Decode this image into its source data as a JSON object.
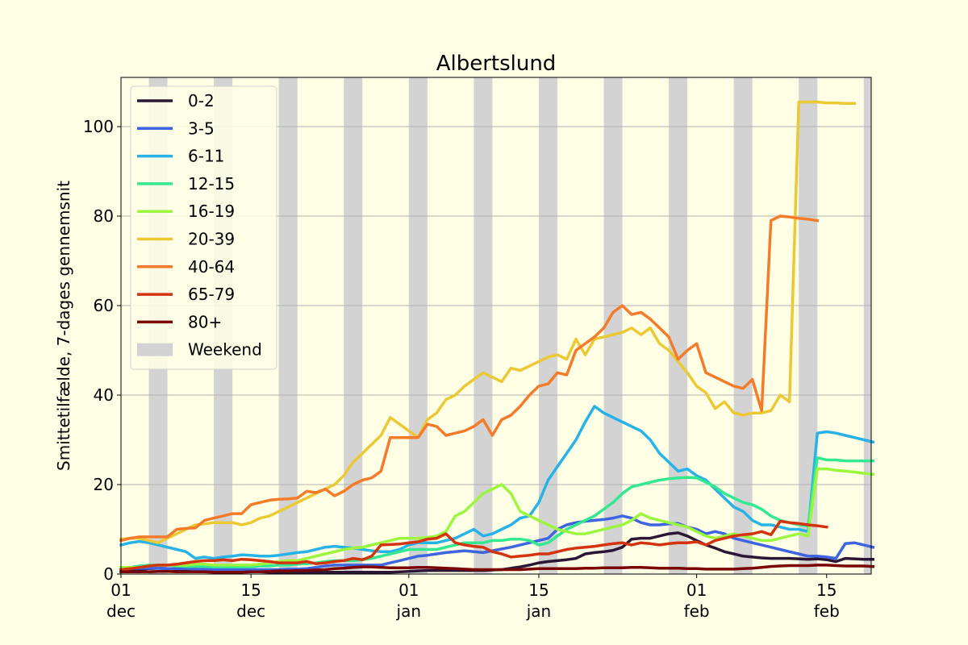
{
  "chart_data": {
    "type": "line",
    "title": "Albertslund",
    "xlabel": "",
    "ylabel": "Smittetilfælde, 7-dages gennemsnit",
    "ylim": [
      0,
      111
    ],
    "yticks": [
      0,
      20,
      40,
      60,
      80,
      100
    ],
    "xlim": [
      "2021-12-01",
      "2022-02-19"
    ],
    "xticks": [
      {
        "date": "2021-12-01",
        "line1": "01",
        "line2": "dec"
      },
      {
        "date": "2021-12-15",
        "line1": "15",
        "line2": "dec"
      },
      {
        "date": "2022-01-01",
        "line1": "01",
        "line2": "jan"
      },
      {
        "date": "2022-01-15",
        "line1": "15",
        "line2": "jan"
      },
      {
        "date": "2022-02-01",
        "line1": "01",
        "line2": "feb"
      },
      {
        "date": "2022-02-15",
        "line1": "15",
        "line2": "feb"
      }
    ],
    "grid": "horizontal",
    "legend_position": "top-left",
    "weekend_label": "Weekend",
    "weekend_color": "#d3d3d3",
    "weekends": [
      [
        "2021-12-04",
        "2021-12-05"
      ],
      [
        "2021-12-11",
        "2021-12-12"
      ],
      [
        "2021-12-18",
        "2021-12-19"
      ],
      [
        "2021-12-25",
        "2021-12-26"
      ],
      [
        "2022-01-01",
        "2022-01-02"
      ],
      [
        "2022-01-08",
        "2022-01-09"
      ],
      [
        "2022-01-15",
        "2022-01-16"
      ],
      [
        "2022-01-22",
        "2022-01-23"
      ],
      [
        "2022-01-29",
        "2022-01-30"
      ],
      [
        "2022-02-05",
        "2022-02-06"
      ],
      [
        "2022-02-12",
        "2022-02-13"
      ],
      [
        "2022-02-19",
        "2022-02-20"
      ]
    ],
    "start_date": "2021-12-01",
    "series": [
      {
        "name": "0-2",
        "color": "#2b1735",
        "keys": [
          [
            0,
            0.5
          ],
          [
            10,
            0.5
          ],
          [
            20,
            0.3
          ],
          [
            26,
            0.5
          ],
          [
            30,
            1
          ],
          [
            35,
            1.5
          ],
          [
            40,
            1.2
          ],
          [
            45,
            1.2
          ],
          [
            48,
            0.8
          ],
          [
            52,
            0.3
          ],
          [
            55,
            0.4
          ],
          [
            57,
            0.7
          ],
          [
            60,
            1
          ],
          [
            65,
            1
          ],
          [
            70,
            1.1
          ],
          [
            75,
            1.3
          ],
          [
            78,
            1.2
          ],
          [
            80,
            1
          ],
          [
            83,
            0.8
          ],
          [
            86,
            0.6
          ],
          [
            88,
            0.8
          ],
          [
            90,
            1
          ],
          [
            93,
            1.2
          ],
          [
            96,
            1.6
          ],
          [
            100,
            1.5
          ]
        ],
        "values": [
          0.5,
          0.7,
          1.0,
          1.2,
          1.3,
          1.2,
          1.1,
          1.0,
          0.9,
          0.8,
          0.7,
          0.6,
          0.6,
          0.5,
          0.5,
          0.5,
          0.4,
          0.4,
          0.4,
          0.4,
          0.4,
          0.4,
          0.4,
          0.4,
          0.4,
          0.4,
          0.4,
          0.4,
          0.4,
          0.4,
          0.5,
          0.6,
          0.7,
          0.8,
          0.8,
          0.8,
          0.8,
          0.8,
          0.8,
          0.8,
          0.9,
          1.0,
          1.3,
          1.6,
          2.0,
          2.5,
          2.8,
          3.0,
          3.2,
          3.5,
          4.5,
          4.8,
          5.0,
          5.3,
          6.0,
          7.8,
          8.0,
          8.0,
          8.5,
          9.0,
          9.2,
          8.5,
          7.5,
          6.5,
          5.8,
          5.0,
          4.5,
          4.0,
          3.8,
          3.6,
          3.5,
          3.5,
          3.5,
          3.4,
          3.3,
          3.4,
          3.2,
          2.8,
          3.5,
          3.4,
          3.3,
          3.3
        ]
      },
      {
        "name": "3-5",
        "color": "#3e64e0",
        "values": [
          1.0,
          1.2,
          1.3,
          1.3,
          1.3,
          1.2,
          1.2,
          1.2,
          1.1,
          1.1,
          1.0,
          1.0,
          1.0,
          1.0,
          1.0,
          1.0,
          1.0,
          1.0,
          1.1,
          1.1,
          1.2,
          1.5,
          1.8,
          2.0,
          2.0,
          2.0,
          2.0,
          2.0,
          2.0,
          2.5,
          3.0,
          3.5,
          4.0,
          4.2,
          4.5,
          4.8,
          5.0,
          5.2,
          5.0,
          4.8,
          5.2,
          5.6,
          6.0,
          6.5,
          7.0,
          7.5,
          8.0,
          10.0,
          11.0,
          11.5,
          11.8,
          12.0,
          12.2,
          12.5,
          13.0,
          12.5,
          11.5,
          11.0,
          11.0,
          11.2,
          11.3,
          10.5,
          10.0,
          9.0,
          9.5,
          9.0,
          8.0,
          7.5,
          7.0,
          6.5,
          6.0,
          5.5,
          5.0,
          4.5,
          4.0,
          4.0,
          3.8,
          3.5,
          6.8,
          7.0,
          6.5,
          6.0
        ]
      },
      {
        "name": "6-11",
        "color": "#27b3e5",
        "values": [
          6.5,
          7.0,
          7.3,
          7.0,
          6.5,
          6.0,
          5.5,
          5.0,
          3.5,
          3.8,
          3.5,
          3.8,
          4.0,
          4.3,
          4.2,
          4.0,
          4.0,
          4.2,
          4.5,
          4.8,
          5.0,
          5.5,
          6.0,
          6.2,
          6.0,
          5.8,
          5.5,
          5.2,
          5.0,
          5.0,
          5.5,
          6.5,
          7.0,
          7.0,
          7.0,
          7.5,
          8.0,
          9.0,
          10.0,
          8.5,
          9.0,
          10.0,
          11.0,
          12.5,
          13.0,
          16.0,
          21.0,
          24.0,
          27.0,
          30.0,
          34.0,
          37.5,
          36.0,
          35.0,
          34.0,
          33.0,
          32.0,
          30.0,
          27.0,
          25.0,
          23.0,
          23.5,
          22.0,
          21.0,
          19.0,
          17.0,
          15.0,
          14.0,
          12.0,
          11.0,
          11.0,
          10.5,
          10.0,
          10.0,
          9.5,
          31.5,
          31.8,
          31.5,
          31.0,
          30.5,
          30.0,
          29.5
        ]
      },
      {
        "name": "12-15",
        "color": "#34e890",
        "values": [
          1.2,
          1.5,
          1.8,
          2.0,
          2.0,
          2.0,
          1.8,
          1.7,
          1.7,
          1.7,
          1.6,
          1.6,
          1.6,
          1.6,
          1.6,
          1.8,
          1.8,
          2.0,
          2.0,
          2.2,
          2.3,
          2.5,
          2.8,
          3.0,
          3.0,
          3.0,
          3.2,
          3.5,
          4.0,
          4.5,
          5.0,
          5.5,
          5.5,
          5.5,
          5.5,
          6.0,
          6.5,
          7.0,
          7.0,
          7.0,
          7.5,
          7.5,
          7.8,
          7.8,
          7.5,
          6.5,
          7.0,
          8.5,
          10.0,
          11.0,
          12.0,
          13.0,
          14.5,
          16.0,
          18.0,
          19.5,
          20.0,
          20.5,
          21.0,
          21.3,
          21.5,
          21.6,
          21.5,
          20.5,
          19.5,
          18.0,
          17.0,
          16.0,
          15.5,
          14.5,
          13.0,
          12.0,
          11.5,
          11.0,
          10.8,
          26.0,
          25.5,
          25.5,
          25.3,
          25.3,
          25.3,
          25.3
        ]
      },
      {
        "name": "16-19",
        "color": "#9cf53f",
        "values": [
          1.5,
          1.5,
          1.5,
          1.8,
          2.0,
          2.0,
          2.0,
          2.0,
          2.2,
          2.2,
          2.0,
          2.0,
          2.0,
          2.0,
          2.0,
          2.2,
          2.5,
          2.8,
          3.0,
          3.0,
          3.5,
          4.0,
          4.5,
          5.0,
          5.5,
          5.8,
          6.0,
          6.5,
          7.0,
          7.5,
          8.0,
          8.0,
          8.0,
          8.2,
          8.5,
          9.5,
          13.0,
          14.0,
          16.0,
          18.0,
          19.0,
          20.0,
          18.0,
          14.0,
          13.0,
          12.0,
          11.0,
          10.0,
          9.5,
          9.0,
          9.0,
          9.5,
          10.0,
          10.5,
          11.0,
          12.0,
          13.5,
          12.5,
          12.0,
          11.5,
          11.0,
          10.5,
          9.5,
          8.5,
          8.0,
          8.5,
          9.0,
          8.5,
          8.0,
          7.5,
          7.5,
          8.0,
          8.5,
          9.0,
          8.5,
          23.5,
          23.5,
          23.2,
          23.0,
          22.8,
          22.5,
          22.3
        ]
      },
      {
        "name": "20-39",
        "color": "#eac935",
        "values": [
          7.8,
          8.0,
          8.0,
          7.5,
          7.0,
          8.0,
          9.0,
          10.0,
          11.0,
          11.2,
          11.5,
          11.5,
          11.5,
          11.0,
          11.5,
          12.5,
          13.0,
          14.0,
          15.0,
          16.0,
          17.0,
          18.0,
          19.0,
          20.0,
          22.0,
          25.0,
          27.0,
          29.0,
          31.0,
          35.0,
          33.5,
          32.0,
          30.5,
          34.5,
          36.0,
          39.0,
          40.0,
          42.0,
          43.5,
          45.0,
          44.0,
          43.0,
          46.0,
          45.5,
          46.5,
          47.5,
          48.5,
          49.0,
          48.0,
          52.5,
          49.0,
          52.5,
          53.0,
          53.5,
          54.0,
          55.0,
          53.5,
          55.0,
          51.5,
          50.0,
          47.5,
          45.0,
          42.0,
          40.5,
          37.0,
          38.5,
          36.0,
          35.5,
          36.0,
          36.0,
          36.5,
          40.0,
          38.5,
          105.5,
          105.5,
          105.5,
          105.3,
          105.3,
          105.2,
          105.2
        ]
      },
      {
        "name": "40-64",
        "color": "#f47b2a",
        "values": [
          7.5,
          8.0,
          8.3,
          8.3,
          8.3,
          8.3,
          10.0,
          10.2,
          10.3,
          12.0,
          12.5,
          13.0,
          13.5,
          13.5,
          15.5,
          16.0,
          16.5,
          16.7,
          16.8,
          17.0,
          18.5,
          18.2,
          19.0,
          17.5,
          18.5,
          20.0,
          21.0,
          21.5,
          23.0,
          30.5,
          30.5,
          30.5,
          30.5,
          33.5,
          33.0,
          31.0,
          31.5,
          32.0,
          33.0,
          34.5,
          31.0,
          34.5,
          35.5,
          37.5,
          40.0,
          42.0,
          42.5,
          45.0,
          44.5,
          50.0,
          51.5,
          53.0,
          55.0,
          58.5,
          60.0,
          58.0,
          58.5,
          57.0,
          55.0,
          53.0,
          48.0,
          50.0,
          51.5,
          45.0,
          44.0,
          43.0,
          42.0,
          41.5,
          43.5,
          36.5,
          79.0,
          80.0,
          79.8,
          79.5,
          79.3,
          79.0
        ]
      },
      {
        "name": "65-79",
        "color": "#d3330f",
        "values": [
          1.0,
          1.2,
          1.5,
          1.8,
          2.0,
          2.0,
          2.2,
          2.5,
          2.8,
          3.0,
          3.0,
          3.2,
          3.0,
          3.3,
          3.2,
          3.0,
          2.8,
          2.5,
          2.5,
          2.5,
          2.8,
          2.3,
          2.5,
          2.8,
          3.0,
          3.5,
          3.2,
          4.0,
          6.5,
          6.6,
          6.7,
          7.0,
          7.2,
          7.8,
          8.0,
          9.0,
          7.0,
          6.5,
          6.2,
          6.0,
          5.0,
          4.5,
          3.8,
          4.0,
          4.2,
          4.5,
          4.5,
          5.0,
          5.5,
          5.8,
          6.0,
          6.2,
          6.5,
          6.8,
          7.0,
          6.5,
          7.0,
          6.8,
          6.5,
          6.8,
          7.0,
          7.0,
          7.2,
          6.5,
          7.5,
          8.0,
          8.5,
          8.8,
          9.0,
          9.5,
          8.8,
          11.8,
          11.5,
          11.3,
          11.0,
          10.8,
          10.5
        ]
      },
      {
        "name": "80+",
        "color": "#7a0403",
        "values": [
          0.5,
          0.5,
          0.5,
          0.5,
          0.6,
          0.6,
          0.5,
          0.5,
          0.5,
          0.5,
          0.4,
          0.4,
          0.4,
          0.4,
          0.5,
          0.5,
          0.6,
          0.7,
          0.7,
          0.8,
          0.8,
          0.9,
          1.0,
          1.2,
          1.3,
          1.5,
          1.6,
          1.6,
          1.5,
          1.4,
          1.4,
          1.4,
          1.5,
          1.5,
          1.4,
          1.3,
          1.2,
          1.1,
          1.0,
          1.0,
          1.0,
          1.0,
          1.0,
          1.0,
          1.1,
          1.2,
          1.2,
          1.2,
          1.2,
          1.2,
          1.3,
          1.3,
          1.4,
          1.4,
          1.4,
          1.5,
          1.5,
          1.4,
          1.3,
          1.3,
          1.3,
          1.2,
          1.2,
          1.1,
          1.1,
          1.1,
          1.1,
          1.2,
          1.3,
          1.5,
          1.7,
          1.8,
          1.9,
          1.9,
          1.9,
          2.0,
          2.0,
          1.9,
          1.8,
          1.8,
          1.8,
          1.7
        ]
      }
    ]
  }
}
